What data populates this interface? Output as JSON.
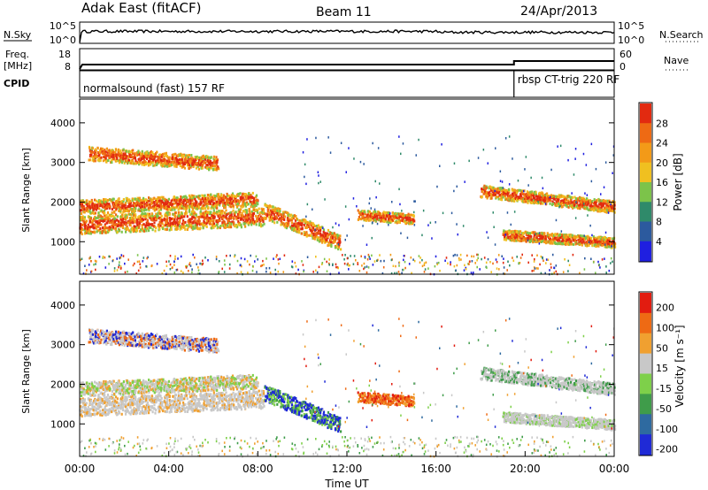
{
  "header": {
    "site": "Adak East (fitACF)",
    "beam": "Beam 11",
    "date": "24/Apr/2013"
  },
  "nsky_panel": {
    "label": "N.Sky",
    "label_right": "N.Search",
    "yticks_left": [
      "10^5",
      "10^0"
    ],
    "yticks_right": [
      "10^5",
      "10^0"
    ]
  },
  "freq_panel": {
    "label_line1": "Freq.",
    "label_line2": "[MHz]",
    "label_right": "Nave",
    "yticks_left": [
      "18",
      "8"
    ],
    "yticks_right": [
      "60",
      "0"
    ]
  },
  "cpid_panel": {
    "label": "CPID",
    "mode1": "normalsound (fast) 157 RF",
    "mode2": "rbsp CT-trig 220 RF",
    "mode_change_hour": 19.5
  },
  "x_axis": {
    "label": "Time UT",
    "ticks": [
      "00:00",
      "04:00",
      "08:00",
      "12:00",
      "16:00",
      "20:00",
      "00:00"
    ],
    "range_hours": [
      0,
      24
    ]
  },
  "power_panel": {
    "ylabel": "Slant Range [km]",
    "yticks": [
      "1000",
      "2000",
      "3000",
      "4000"
    ],
    "ytick_values": [
      1000,
      2000,
      3000,
      4000
    ],
    "yrange_km": [
      180,
      4600
    ],
    "colorbar_label": "Power [dB]",
    "colorbar_ticks": [
      "4",
      "8",
      "12",
      "16",
      "20",
      "24",
      "28"
    ],
    "colors": [
      "#1f1fe0",
      "#2c5a9e",
      "#2f8a6a",
      "#7cc34a",
      "#f0c020",
      "#f39a18",
      "#ee6a14",
      "#e22a10"
    ]
  },
  "velocity_panel": {
    "ylabel": "Slant Range [km]",
    "yticks": [
      "1000",
      "2000",
      "3000",
      "4000"
    ],
    "ytick_values": [
      1000,
      2000,
      3000,
      4000
    ],
    "yrange_km": [
      180,
      4600
    ],
    "colorbar_label": "Velocity [m s⁻¹]",
    "colorbar_ticks": [
      "200",
      "100",
      "50",
      "15",
      "-15",
      "-50",
      "-100",
      "-200"
    ],
    "colors": [
      "#1f2ad6",
      "#2e6aa0",
      "#3f9c4a",
      "#7ed04a",
      "#c8c8c8",
      "#f0a030",
      "#ee6a14",
      "#e21c10"
    ],
    "ground_scatter_color": "#c8c8c8"
  },
  "chart_data": {
    "type": "heatmap",
    "x_units": "hours UT",
    "y_units": "km",
    "echo_regions": [
      {
        "name": "early_high_band",
        "t": [
          0.4,
          6.2
        ],
        "r_center": [
          3250,
          3000
        ],
        "r_width": 350
      },
      {
        "name": "early_mid_band",
        "t": [
          0.0,
          8.0
        ],
        "r_center": [
          1900,
          2100
        ],
        "r_width": 350
      },
      {
        "name": "early_low_band",
        "t": [
          0.0,
          8.3
        ],
        "r_center": [
          1450,
          1650
        ],
        "r_width": 450
      },
      {
        "name": "morning_slant",
        "t": [
          8.3,
          11.7
        ],
        "r_center": [
          1800,
          1000
        ],
        "r_width": 400
      },
      {
        "name": "post_noon_patch",
        "t": [
          12.5,
          15.0
        ],
        "r_center": [
          1700,
          1600
        ],
        "r_width": 250
      },
      {
        "name": "late_upper",
        "t": [
          18.0,
          24.0
        ],
        "r_center": [
          2300,
          1900
        ],
        "r_width": 300
      },
      {
        "name": "late_lower",
        "t": [
          19.0,
          24.0
        ],
        "r_center": [
          1200,
          1000
        ],
        "r_width": 250
      }
    ]
  }
}
